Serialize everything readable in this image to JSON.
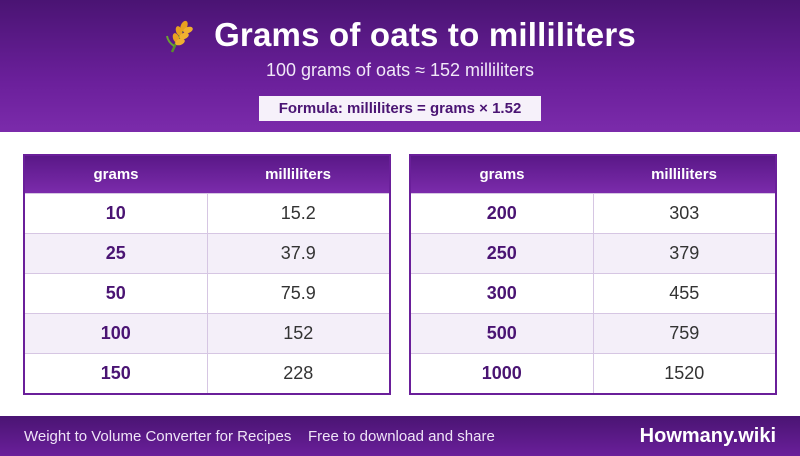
{
  "header": {
    "icon": "wheat-icon",
    "title": "Grams of oats to milliliters",
    "subtitle": "100 grams of oats ≈ 152 milliliters",
    "formula": "Formula: milliliters = grams × 1.52"
  },
  "tables": [
    {
      "columns": [
        "grams",
        "milliliters"
      ],
      "rows": [
        {
          "grams": "10",
          "ml": "15.2"
        },
        {
          "grams": "25",
          "ml": "37.9"
        },
        {
          "grams": "50",
          "ml": "75.9"
        },
        {
          "grams": "100",
          "ml": "152"
        },
        {
          "grams": "150",
          "ml": "228"
        }
      ]
    },
    {
      "columns": [
        "grams",
        "milliliters"
      ],
      "rows": [
        {
          "grams": "200",
          "ml": "303"
        },
        {
          "grams": "250",
          "ml": "379"
        },
        {
          "grams": "300",
          "ml": "455"
        },
        {
          "grams": "500",
          "ml": "759"
        },
        {
          "grams": "1000",
          "ml": "1520"
        }
      ]
    }
  ],
  "footer": {
    "left": "Weight to Volume Converter for Recipes",
    "middle": "Free to download and share",
    "brand": "Howmany.wiki"
  },
  "colors": {
    "accent": "#6a1f9a",
    "dark": "#4a1473",
    "row_alt": "#f4eff9"
  }
}
